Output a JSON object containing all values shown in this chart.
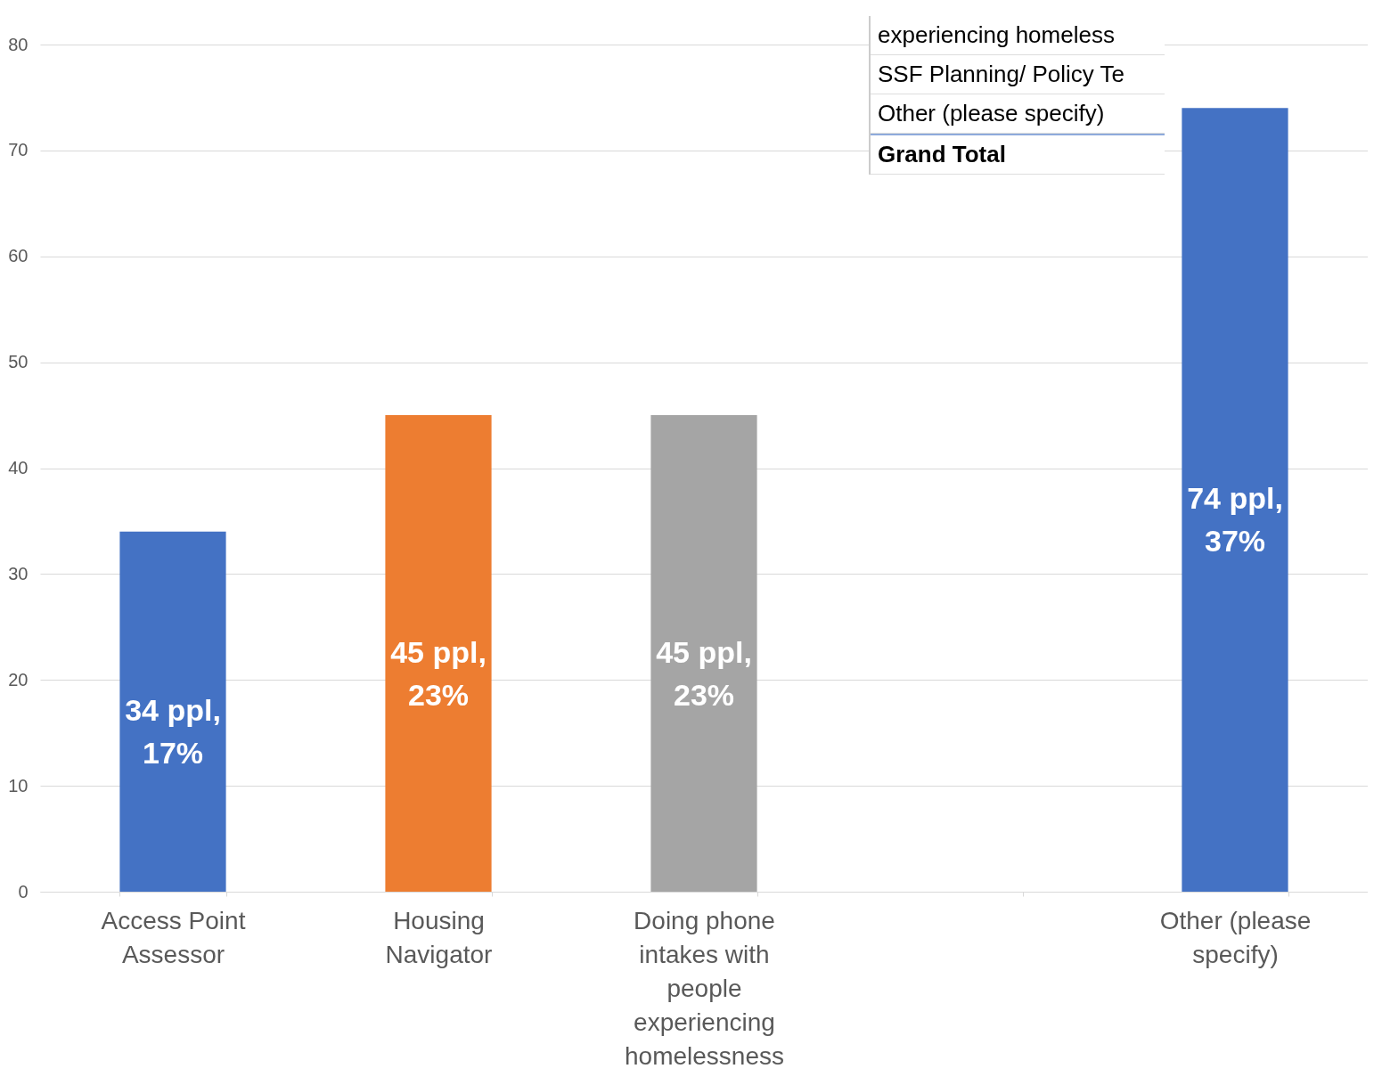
{
  "chart_data": {
    "type": "bar",
    "categories": [
      "Access Point Assessor",
      "Housing Navigator",
      "Doing phone intakes with people experiencing homelessness",
      null,
      "Other (please specify)"
    ],
    "values": [
      34,
      45,
      45,
      null,
      74
    ],
    "colors": [
      "#4472c4",
      "#ed7d31",
      "#a5a5a5",
      "#a5a5a5",
      "#4472c4"
    ],
    "value_labels": [
      "34 ppl, 17%",
      "45 ppl, 23%",
      "45 ppl, 23%",
      null,
      "74 ppl, 37%"
    ],
    "ylim": [
      0,
      80
    ],
    "yticks": [
      0,
      10,
      20,
      30,
      40,
      50,
      60,
      70,
      80
    ],
    "grid": "y",
    "annotations": [
      "experiencing homeless",
      "SSF Planning/ Policy Te",
      "Other (please specify)",
      "Grand Total"
    ]
  }
}
